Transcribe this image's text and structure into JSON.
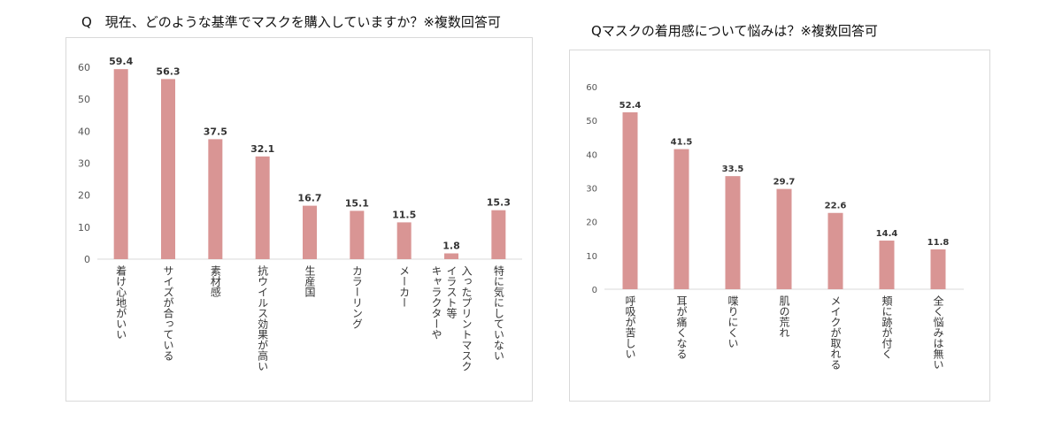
{
  "chart_data": [
    {
      "type": "bar",
      "title": "Q　現在、どのような基準でマスクを購入していますか？※複数回答可",
      "categories": [
        "着け心地がいい",
        "サイズが合っている",
        "素材感",
        "抗ウイルス効果が高い",
        "生産国",
        "カラーリング",
        "メーカー",
        "キャラクターや\nイラスト等\n入ったプリントマスク",
        "特に気にしていない"
      ],
      "values": [
        59.4,
        56.3,
        37.5,
        32.1,
        16.7,
        15.1,
        11.5,
        1.8,
        15.3
      ],
      "value_labels": [
        "59.4",
        "56.3",
        "37.5",
        "32.1",
        "16.7",
        "15.1",
        "11.5",
        "1.8",
        "15.3"
      ],
      "yticks": [
        "0",
        "10",
        "20",
        "30",
        "40",
        "50",
        "60"
      ],
      "ylim": [
        0,
        60
      ],
      "grid": false,
      "bar_color": "#d99594"
    },
    {
      "type": "bar",
      "title": "Qマスクの着用感について悩みは？※複数回答可",
      "categories": [
        "呼吸が苦しい",
        "耳が痛くなる",
        "喋りにくい",
        "肌の荒れ",
        "メイクが取れる",
        "頬に跡が付く",
        "全く悩みは無い"
      ],
      "values": [
        52.4,
        41.5,
        33.5,
        29.7,
        22.6,
        14.4,
        11.8
      ],
      "value_labels": [
        "52.4",
        "41.5",
        "33.5",
        "29.7",
        "22.6",
        "14.4",
        "11.8"
      ],
      "yticks": [
        "0",
        "10",
        "20",
        "30",
        "40",
        "50",
        "60"
      ],
      "ylim": [
        0,
        60
      ],
      "grid": false,
      "bar_color": "#d99594"
    }
  ]
}
